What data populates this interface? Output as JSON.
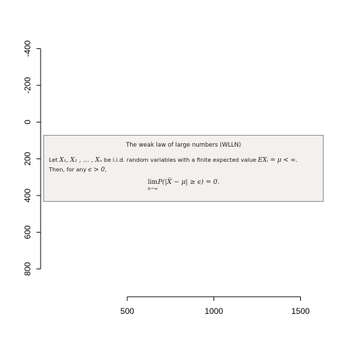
{
  "chart_data": {
    "type": "image",
    "title": "",
    "xlabel": "",
    "ylabel": "",
    "xlim": [
      0,
      1665
    ],
    "ylim": [
      -440,
      940
    ],
    "y_reversed": true,
    "x_ticks": [
      500,
      1000,
      1500
    ],
    "y_ticks": [
      -400,
      -200,
      0,
      200,
      400,
      600,
      800
    ],
    "x_tick_labels": [
      "500",
      "1000",
      "1500"
    ],
    "y_tick_labels": [
      "-400",
      "-200",
      "0",
      "200",
      "400",
      "600",
      "800"
    ],
    "image_extent": {
      "x": [
        0,
        1600
      ],
      "y": [
        0,
        400
      ]
    }
  },
  "panel": {
    "title": "The weak law of large numbers (WLLN)",
    "line1_prefix": "Let ",
    "vars": "X₁, X₂ , … , Xₙ",
    "line1_mid": " be i.i.d. random variables with a finite expected value ",
    "expectation": "EXᵢ = μ < ∞",
    "line1_end": ".",
    "line2_prefix": "Then, for any ",
    "epsilon_cond": "ϵ > 0",
    "line2_end": ",",
    "lim_word": "lim",
    "lim_sub": "n→∞",
    "formula_rest": "P(|X̅ − μ| ≥ ϵ) = 0."
  },
  "colors": {
    "panel_bg": "#f3f0ed",
    "panel_border": "#8a8a8a",
    "axis": "#000000"
  }
}
